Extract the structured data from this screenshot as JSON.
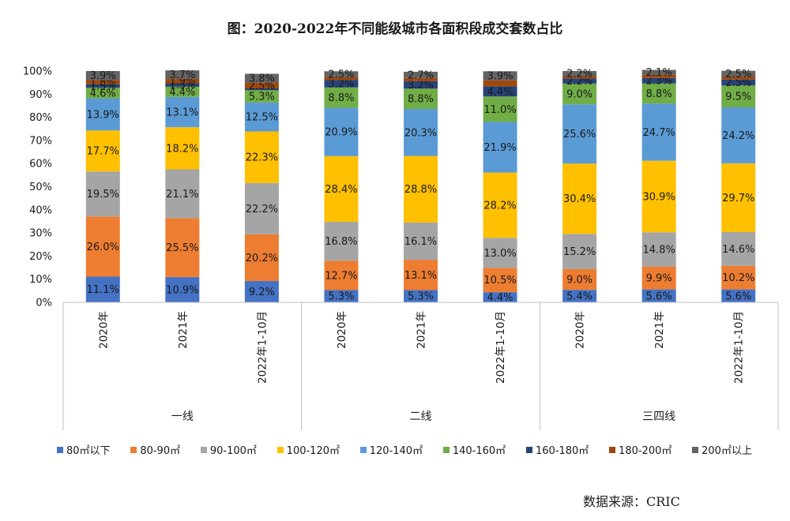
{
  "title": "图：2020-2022年不同能级城市各面积段成交套数占比",
  "source": "数据来源：CRIC",
  "colors": {
    "80㎡以下": "#4472C4",
    "80-90㎡": "#ED7D31",
    "90-100㎡": "#A5A5A5",
    "100-120㎡": "#FFC000",
    "120-140㎡": "#5B9BD5",
    "140-160㎡": "#70AD47",
    "160-180㎡": "#264478",
    "180-200㎡": "#9E480E",
    "200㎡以上": "#636363"
  },
  "chart_data": {
    "type": "bar",
    "stacked": true,
    "ylim": [
      0,
      100
    ],
    "yticks": [
      "0%",
      "10%",
      "20%",
      "30%",
      "40%",
      "50%",
      "60%",
      "70%",
      "80%",
      "90%",
      "100%"
    ],
    "groups": [
      "一线",
      "二线",
      "三四线"
    ],
    "categories": [
      "2020年",
      "2021年",
      "2022年1-10月",
      "2020年",
      "2021年",
      "2022年1-10月",
      "2020年",
      "2021年",
      "2022年1-10月"
    ],
    "legend_position": "bottom",
    "series": [
      {
        "name": "80㎡以下",
        "values": [
          11.1,
          10.9,
          9.2,
          5.3,
          5.3,
          4.4,
          5.4,
          5.6,
          5.6
        ]
      },
      {
        "name": "80-90㎡",
        "values": [
          26.0,
          25.5,
          20.2,
          12.7,
          13.1,
          10.5,
          9.0,
          9.9,
          10.2
        ]
      },
      {
        "name": "90-100㎡",
        "values": [
          19.5,
          21.1,
          22.2,
          16.8,
          16.1,
          13.0,
          15.2,
          14.8,
          14.6
        ]
      },
      {
        "name": "100-120㎡",
        "values": [
          17.7,
          18.2,
          22.3,
          28.4,
          28.8,
          28.2,
          30.4,
          30.9,
          29.7
        ]
      },
      {
        "name": "120-140㎡",
        "values": [
          13.9,
          13.1,
          12.5,
          20.9,
          20.3,
          21.9,
          25.6,
          24.7,
          24.2
        ]
      },
      {
        "name": "140-160㎡",
        "values": [
          4.6,
          4.4,
          5.3,
          8.8,
          8.8,
          11.0,
          9.0,
          8.8,
          9.5
        ]
      },
      {
        "name": "160-180㎡",
        "values": [
          1.5,
          1.5,
          0.8,
          3.2,
          3.2,
          4.4,
          2.2,
          2.3,
          2.5
        ]
      },
      {
        "name": "180-200㎡",
        "values": [
          1.8,
          1.9,
          2.5,
          1.3,
          1.4,
          2.6,
          1.0,
          1.4,
          1.3
        ]
      },
      {
        "name": "200㎡以上",
        "values": [
          3.9,
          3.7,
          3.8,
          2.5,
          2.7,
          3.9,
          2.2,
          2.1,
          2.5
        ]
      }
    ],
    "labels": [
      [
        "11.1%",
        "10.9%",
        "9.2%",
        "5.3%",
        "5.3%",
        "4.4%",
        "5.4%",
        "5.6%",
        "5.6%"
      ],
      [
        "26.0%",
        "25.5%",
        "20.2%",
        "12.7%",
        "13.1%",
        "10.5%",
        "9.0%",
        "9.9%",
        "10.2%"
      ],
      [
        "19.5%",
        "21.1%",
        "22.2%",
        "16.8%",
        "16.1%",
        "13.0%",
        "15.2%",
        "14.8%",
        "14.6%"
      ],
      [
        "17.7%",
        "18.2%",
        "22.3%",
        "28.4%",
        "28.8%",
        "28.2%",
        "30.4%",
        "30.9%",
        "29.7%"
      ],
      [
        "13.9%",
        "13.1%",
        "12.5%",
        "20.9%",
        "20.3%",
        "21.9%",
        "25.6%",
        "24.7%",
        "24.2%"
      ],
      [
        "4.6%",
        "4.4%",
        "5.3%",
        "8.8%",
        "8.8%",
        "11.0%",
        "9.0%",
        "8.8%",
        "9.5%"
      ],
      [
        "1.5%",
        "1.5%",
        "",
        "3.2%",
        "3.2%",
        "4.4%",
        "2.2%",
        "2.3%",
        "2.5%"
      ],
      [
        "1.8%",
        "1.9%",
        "2.5%",
        "",
        "",
        "",
        "",
        "",
        ""
      ],
      [
        "3.9%",
        "3.7%",
        "3.8%",
        "2.5%",
        "2.7%",
        "3.9%",
        "2.2%",
        "2.1%",
        "2.5%"
      ]
    ]
  }
}
